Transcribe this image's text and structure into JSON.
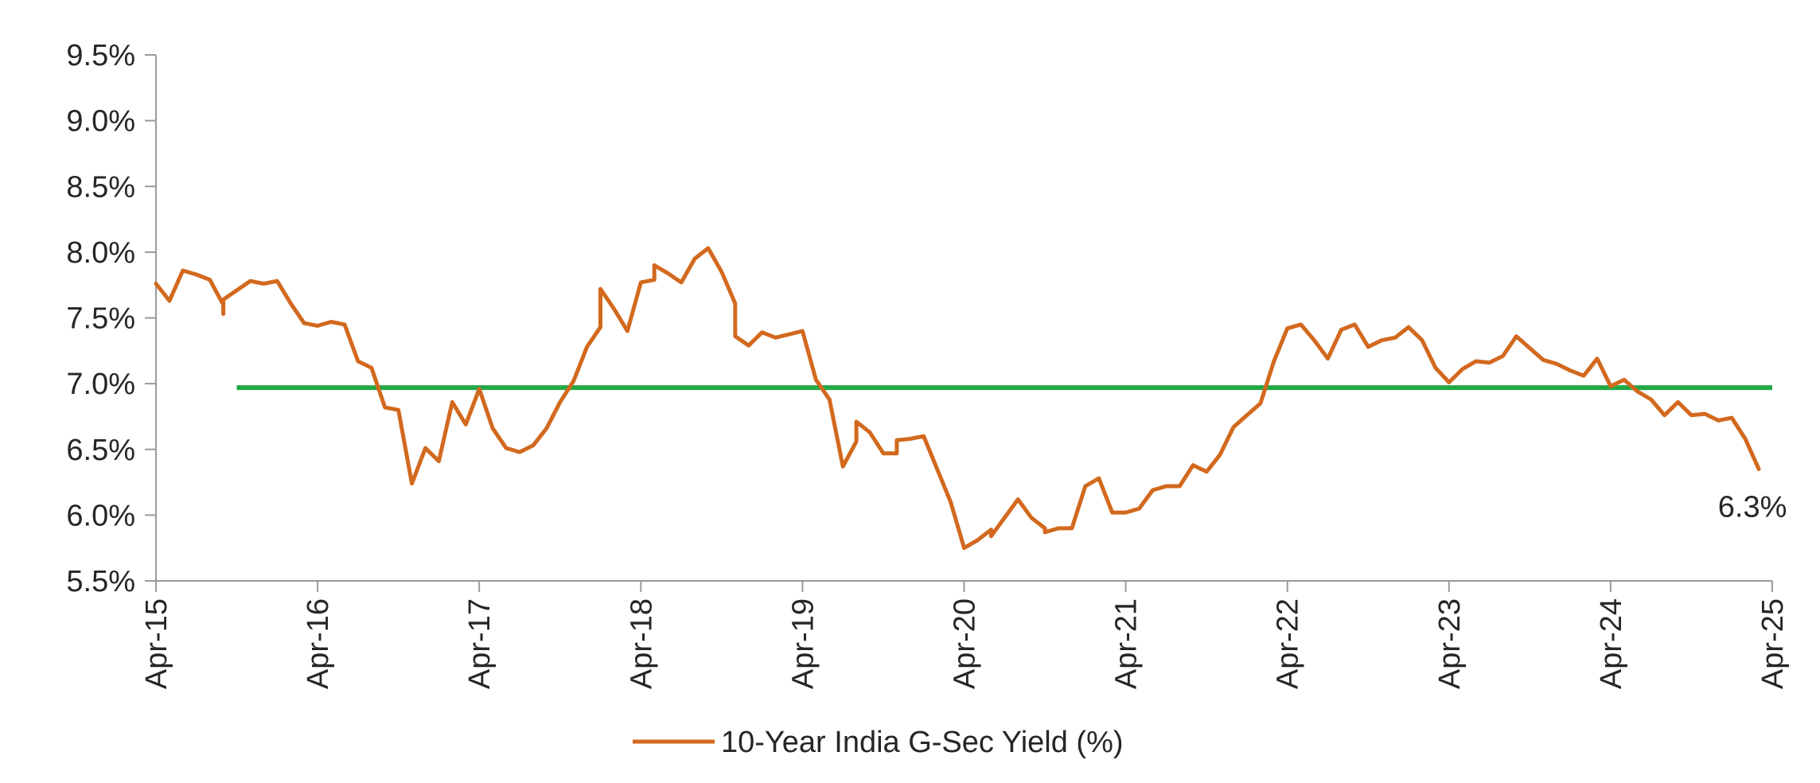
{
  "chart_data": {
    "type": "line",
    "title": "",
    "xlabel": "",
    "ylabel": "",
    "ylim": [
      5.5,
      9.5
    ],
    "xlim": [
      "2015-04",
      "2025-04"
    ],
    "y_tick_labels": [
      "5.5%",
      "6.0%",
      "6.5%",
      "7.0%",
      "7.5%",
      "8.0%",
      "8.5%",
      "9.0%",
      "9.5%"
    ],
    "x_tick_labels": [
      "Apr-15",
      "Apr-16",
      "Apr-17",
      "Apr-18",
      "Apr-19",
      "Apr-20",
      "Apr-21",
      "Apr-22",
      "Apr-23",
      "Apr-24",
      "Apr-25"
    ],
    "grid": false,
    "legend_position": "bottom",
    "series": [
      {
        "name": "10-Year India G-Sec Yield (%)",
        "color": "#D2691E",
        "points": [
          [
            "2015-04",
            7.76
          ],
          [
            "2015-05",
            7.63
          ],
          [
            "2015-06",
            7.86
          ],
          [
            "2015-07",
            7.83
          ],
          [
            "2015-08",
            7.79
          ],
          [
            "2015-09",
            7.6
          ],
          [
            "2015-09",
            7.53
          ],
          [
            "2015-09",
            7.64
          ],
          [
            "2015-10",
            7.71
          ],
          [
            "2015-11",
            7.78
          ],
          [
            "2015-12",
            7.76
          ],
          [
            "2016-01",
            7.78
          ],
          [
            "2016-02",
            7.61
          ],
          [
            "2016-03",
            7.46
          ],
          [
            "2016-04",
            7.44
          ],
          [
            "2016-05",
            7.47
          ],
          [
            "2016-06",
            7.45
          ],
          [
            "2016-07",
            7.17
          ],
          [
            "2016-08",
            7.12
          ],
          [
            "2016-09",
            6.82
          ],
          [
            "2016-10",
            6.8
          ],
          [
            "2016-11",
            6.24
          ],
          [
            "2016-12",
            6.51
          ],
          [
            "2017-01",
            6.41
          ],
          [
            "2017-02",
            6.86
          ],
          [
            "2017-03",
            6.69
          ],
          [
            "2017-04",
            6.96
          ],
          [
            "2017-05",
            6.66
          ],
          [
            "2017-06",
            6.51
          ],
          [
            "2017-07",
            6.48
          ],
          [
            "2017-08",
            6.53
          ],
          [
            "2017-09",
            6.66
          ],
          [
            "2017-10",
            6.86
          ],
          [
            "2017-11",
            7.02
          ],
          [
            "2017-12",
            7.28
          ],
          [
            "2018-01",
            7.43
          ],
          [
            "2018-01",
            7.72
          ],
          [
            "2018-02",
            7.57
          ],
          [
            "2018-03",
            7.4
          ],
          [
            "2018-04",
            7.77
          ],
          [
            "2018-05",
            7.79
          ],
          [
            "2018-05",
            7.9
          ],
          [
            "2018-06",
            7.84
          ],
          [
            "2018-07",
            7.77
          ],
          [
            "2018-08",
            7.95
          ],
          [
            "2018-09",
            8.03
          ],
          [
            "2018-10",
            7.85
          ],
          [
            "2018-11",
            7.61
          ],
          [
            "2018-11",
            7.36
          ],
          [
            "2018-12",
            7.29
          ],
          [
            "2019-01",
            7.39
          ],
          [
            "2019-02",
            7.35
          ],
          [
            "2019-04",
            7.4
          ],
          [
            "2019-05",
            7.03
          ],
          [
            "2019-06",
            6.88
          ],
          [
            "2019-07",
            6.37
          ],
          [
            "2019-08",
            6.56
          ],
          [
            "2019-08",
            6.71
          ],
          [
            "2019-09",
            6.63
          ],
          [
            "2019-10",
            6.47
          ],
          [
            "2019-11",
            6.47
          ],
          [
            "2019-11",
            6.57
          ],
          [
            "2019-12",
            6.58
          ],
          [
            "2020-01",
            6.6
          ],
          [
            "2020-03",
            6.1
          ],
          [
            "2020-04",
            5.75
          ],
          [
            "2020-05",
            5.81
          ],
          [
            "2020-06",
            5.89
          ],
          [
            "2020-06",
            5.84
          ],
          [
            "2020-08",
            6.12
          ],
          [
            "2020-09",
            5.98
          ],
          [
            "2020-10",
            5.9
          ],
          [
            "2020-10",
            5.87
          ],
          [
            "2020-11",
            5.9
          ],
          [
            "2020-12",
            5.9
          ],
          [
            "2021-01",
            6.22
          ],
          [
            "2021-02",
            6.28
          ],
          [
            "2021-03",
            6.02
          ],
          [
            "2021-04",
            6.02
          ],
          [
            "2021-05",
            6.05
          ],
          [
            "2021-06",
            6.19
          ],
          [
            "2021-07",
            6.22
          ],
          [
            "2021-08",
            6.22
          ],
          [
            "2021-09",
            6.38
          ],
          [
            "2021-10",
            6.33
          ],
          [
            "2021-11",
            6.46
          ],
          [
            "2021-12",
            6.67
          ],
          [
            "2022-01",
            6.76
          ],
          [
            "2022-02",
            6.85
          ],
          [
            "2022-03",
            7.17
          ],
          [
            "2022-04",
            7.42
          ],
          [
            "2022-05",
            7.45
          ],
          [
            "2022-06",
            7.33
          ],
          [
            "2022-07",
            7.19
          ],
          [
            "2022-08",
            7.41
          ],
          [
            "2022-09",
            7.45
          ],
          [
            "2022-10",
            7.28
          ],
          [
            "2022-11",
            7.33
          ],
          [
            "2022-12",
            7.35
          ],
          [
            "2023-01",
            7.43
          ],
          [
            "2023-02",
            7.33
          ],
          [
            "2023-03",
            7.12
          ],
          [
            "2023-04",
            7.01
          ],
          [
            "2023-05",
            7.11
          ],
          [
            "2023-06",
            7.17
          ],
          [
            "2023-07",
            7.16
          ],
          [
            "2023-08",
            7.21
          ],
          [
            "2023-09",
            7.36
          ],
          [
            "2023-10",
            7.27
          ],
          [
            "2023-11",
            7.18
          ],
          [
            "2023-12",
            7.15
          ],
          [
            "2024-01",
            7.1
          ],
          [
            "2024-02",
            7.06
          ],
          [
            "2024-03",
            7.19
          ],
          [
            "2024-04",
            6.98
          ],
          [
            "2024-05",
            7.03
          ],
          [
            "2024-06",
            6.94
          ],
          [
            "2024-07",
            6.88
          ],
          [
            "2024-08",
            6.76
          ],
          [
            "2024-09",
            6.86
          ],
          [
            "2024-10",
            6.76
          ],
          [
            "2024-11",
            6.77
          ],
          [
            "2024-12",
            6.72
          ],
          [
            "2025-01",
            6.74
          ],
          [
            "2025-02",
            6.58
          ],
          [
            "2025-03",
            6.35
          ]
        ]
      }
    ],
    "reference_line": {
      "value": 6.97,
      "x_start": "2015-10",
      "x_end": "2025-04",
      "color": "#22A845"
    },
    "annotations": [
      {
        "text": "6.3%",
        "x": "2025-03",
        "y": 6.35
      }
    ]
  }
}
